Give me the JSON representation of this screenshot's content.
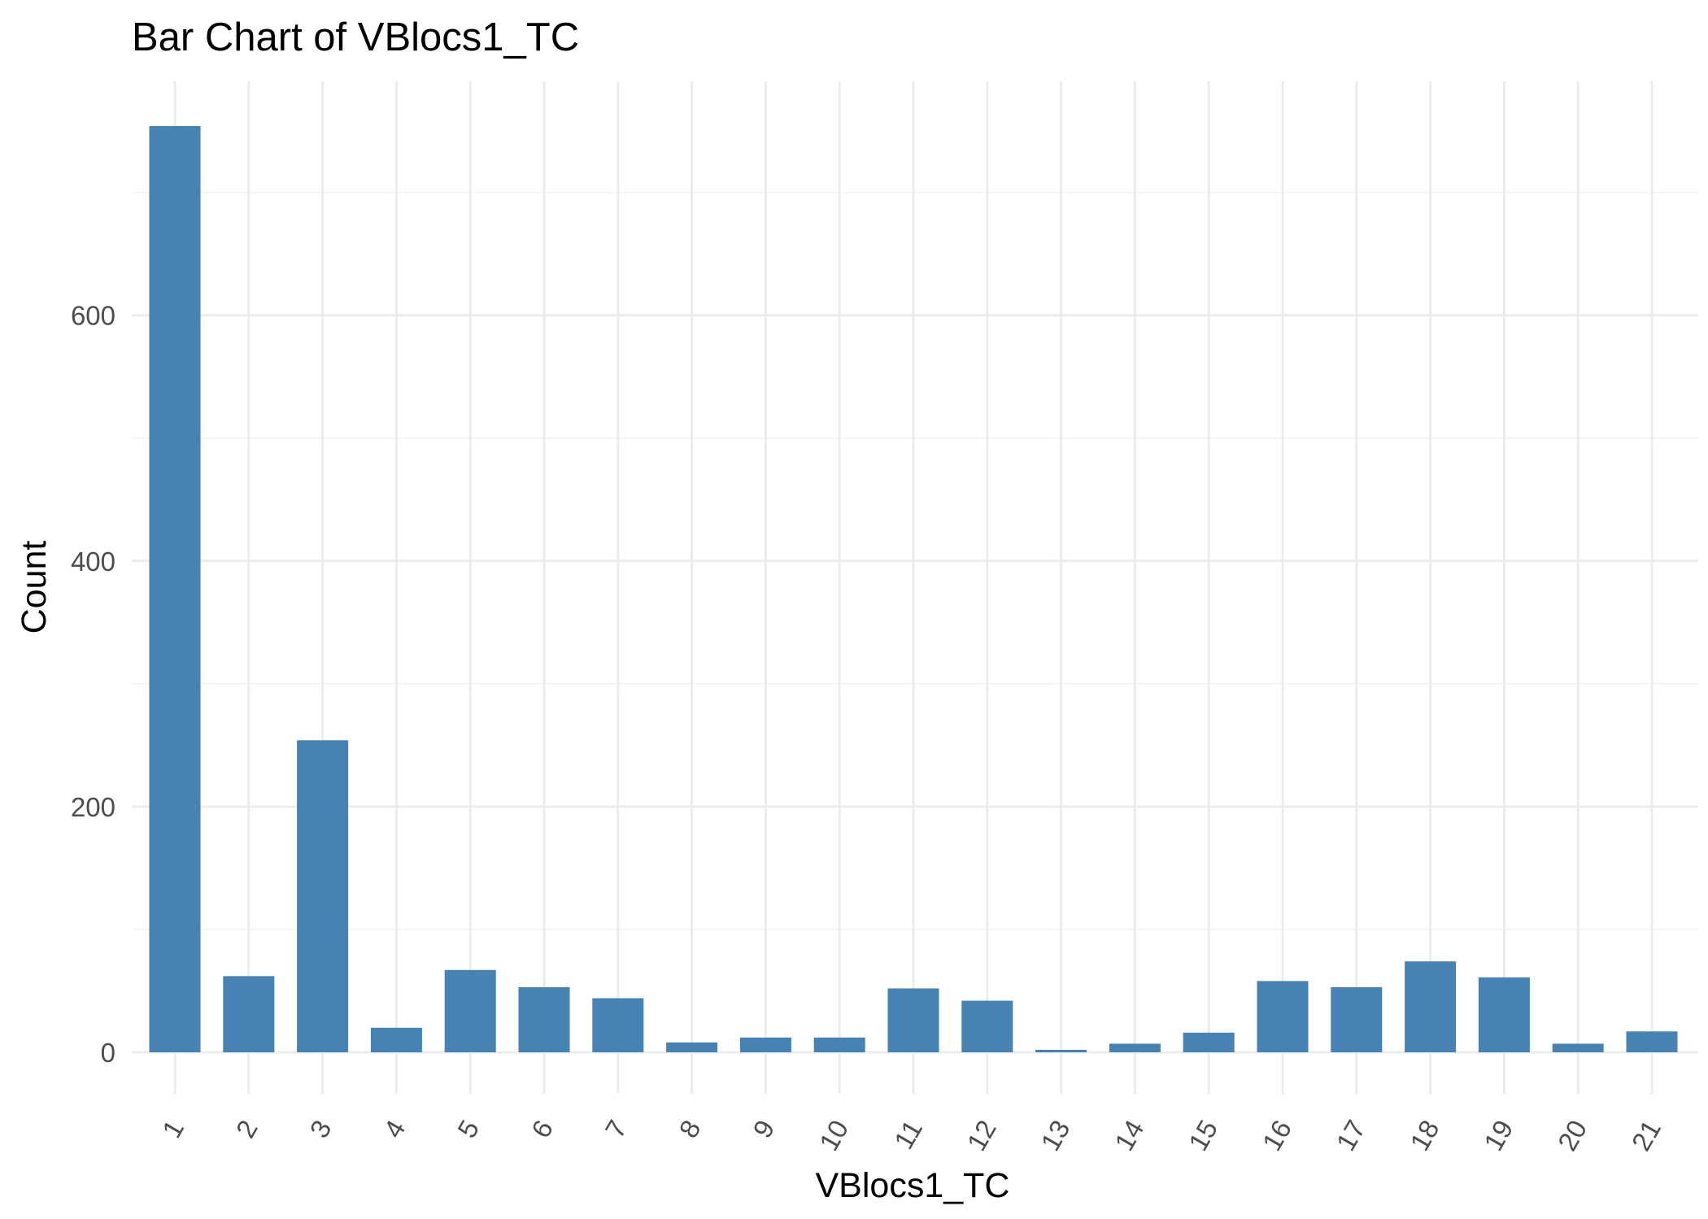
{
  "chart_data": {
    "type": "bar",
    "title": "Bar Chart of  VBlocs1_TC",
    "xlabel": "VBlocs1_TC",
    "ylabel": "Count",
    "categories": [
      "1",
      "2",
      "3",
      "4",
      "5",
      "6",
      "7",
      "8",
      "9",
      "10",
      "11",
      "12",
      "13",
      "14",
      "15",
      "16",
      "17",
      "18",
      "19",
      "20",
      "21"
    ],
    "values": [
      754,
      62,
      254,
      20,
      67,
      53,
      44,
      8,
      12,
      12,
      52,
      42,
      2,
      7,
      16,
      58,
      53,
      74,
      61,
      7,
      17
    ],
    "ylim": [
      0,
      754
    ],
    "yticks": [
      0,
      200,
      400,
      600
    ],
    "bar_color": "#4682b4",
    "grid": true,
    "legend": "none"
  }
}
